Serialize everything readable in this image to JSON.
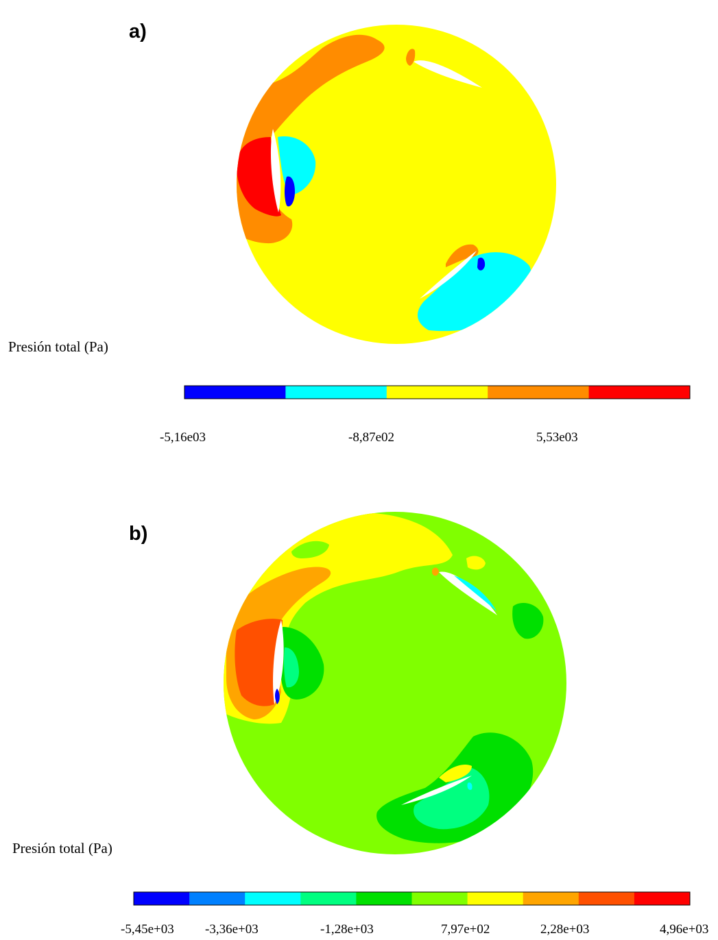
{
  "panels": [
    {
      "label": "a)",
      "colorbar": {
        "title": "Presión total (Pa)",
        "colors": [
          "#0000ff",
          "#00ffff",
          "#ffff00",
          "#ff8c00",
          "#ff0000"
        ],
        "ticks": [
          "-5,16e03",
          "-8,87e02",
          "5,53e03"
        ]
      },
      "field_colors": {
        "background": "#ffff00",
        "orange": "#ff8c00",
        "red": "#ff0000",
        "cyan": "#00ffff",
        "blue": "#0000ff"
      }
    },
    {
      "label": "b)",
      "colorbar": {
        "title": "Presión total  (Pa)",
        "colors": [
          "#0000ff",
          "#0080ff",
          "#00ffff",
          "#00ff80",
          "#00e000",
          "#80ff00",
          "#ffff00",
          "#ffa500",
          "#ff5000",
          "#ff0000"
        ],
        "ticks": [
          "-5,45e+03",
          "-3,36e+03",
          "-1,28e+03",
          "7,97e+02",
          "2,28e+03",
          "4,96e+03"
        ]
      },
      "field_colors": {
        "background": "#80ff00",
        "yellow": "#ffff00",
        "orange": "#ffa500",
        "dark_orange": "#ff5000",
        "green": "#00e000",
        "mint": "#00ff80",
        "cyan": "#00ffff",
        "blue": "#0000ff"
      }
    }
  ]
}
